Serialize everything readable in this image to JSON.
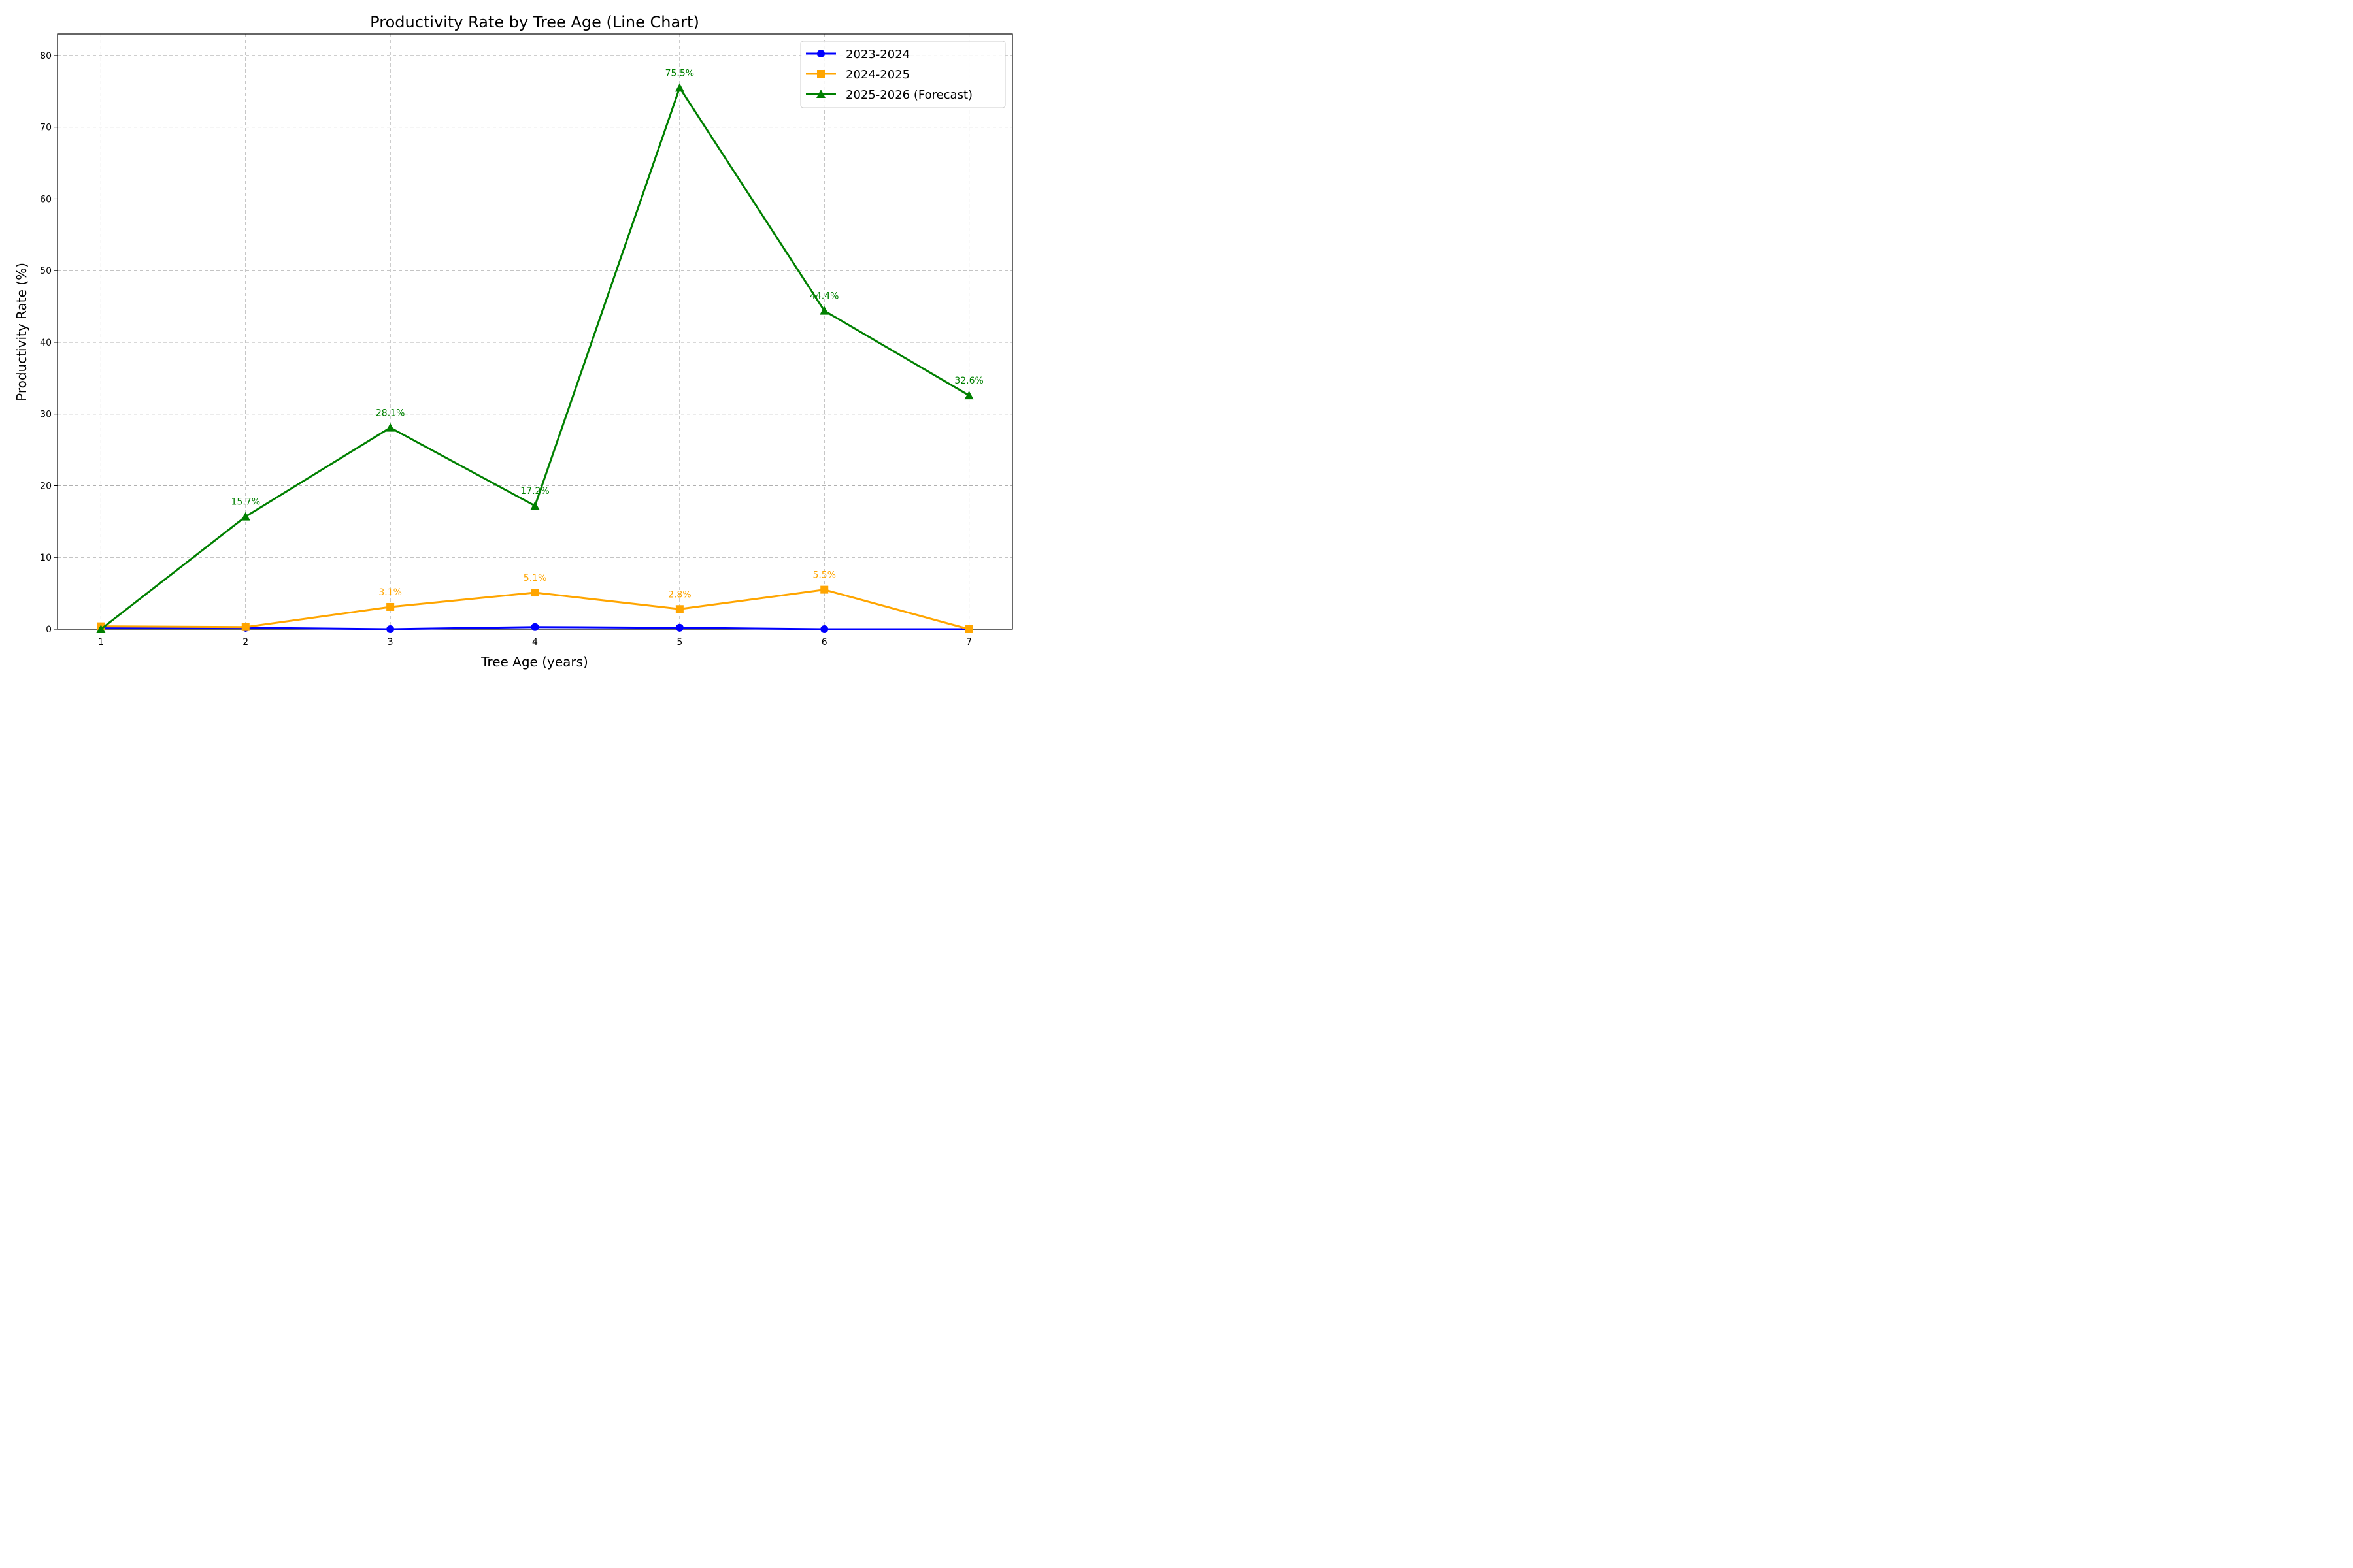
{
  "chart_data": {
    "type": "line",
    "title": "Productivity Rate by Tree Age (Line Chart)",
    "xlabel": "Tree Age (years)",
    "ylabel": "Productivity Rate (%)",
    "x": [
      1,
      2,
      3,
      4,
      5,
      6,
      7
    ],
    "xlim": [
      0.7,
      7.3
    ],
    "ylim": [
      0,
      83
    ],
    "yticks": [
      0,
      10,
      20,
      30,
      40,
      50,
      60,
      70,
      80
    ],
    "grid": true,
    "legend_position": "top-right",
    "series": [
      {
        "name": "2023-2024",
        "color": "#0000ff",
        "marker": "circle",
        "values": [
          0.2,
          0.2,
          0.0,
          0.3,
          0.2,
          0.0,
          0.0
        ],
        "labels": [
          "",
          "",
          "",
          "",
          "",
          "",
          ""
        ]
      },
      {
        "name": "2024-2025",
        "color": "#ffa500",
        "marker": "square",
        "values": [
          0.4,
          0.3,
          3.1,
          5.1,
          2.8,
          5.5,
          0.0
        ],
        "labels": [
          "",
          "",
          "3.1%",
          "5.1%",
          "2.8%",
          "5.5%",
          ""
        ]
      },
      {
        "name": "2025-2026 (Forecast)",
        "color": "#008000",
        "marker": "triangle",
        "values": [
          0.0,
          15.7,
          28.1,
          17.2,
          75.5,
          44.4,
          32.6
        ],
        "labels": [
          "",
          "15.7%",
          "28.1%",
          "17.2%",
          "75.5%",
          "44.4%",
          "32.6%"
        ]
      }
    ]
  }
}
